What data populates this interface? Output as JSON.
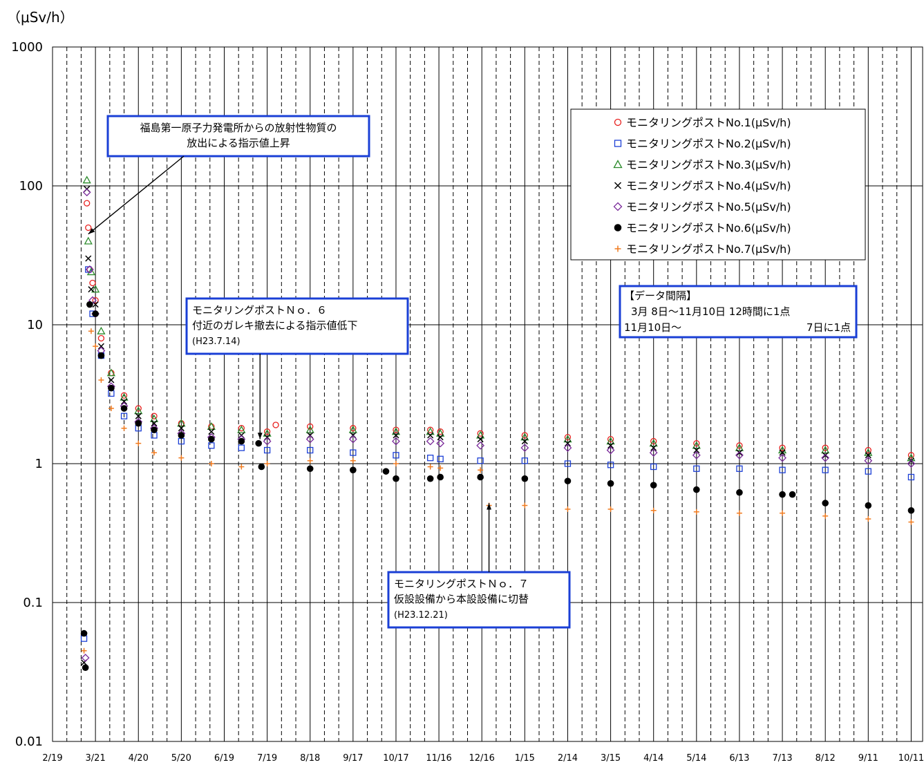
{
  "chart_data": {
    "type": "scatter",
    "y_unit": "（μSv/h）",
    "y_scale": "log",
    "ylim": [
      0.01,
      1000
    ],
    "y_ticks": [
      "1000",
      "100",
      "10",
      "1",
      "0.1",
      "0.01"
    ],
    "x_tick_labels": [
      "2/19",
      "3/21",
      "4/20",
      "5/20",
      "6/19",
      "7/19",
      "8/18",
      "9/17",
      "10/17",
      "11/16",
      "12/16",
      "1/15",
      "2/14",
      "3/15",
      "4/14",
      "5/14",
      "6/13",
      "7/13",
      "8/12",
      "9/11",
      "10/11"
    ],
    "x_range": [
      "2011-02-19",
      "2012-10-19"
    ],
    "grid": true,
    "legend_position": "top-right",
    "series": [
      {
        "name": "モニタリングポストNo.1(μSv/h)",
        "marker": "circle-open",
        "color": "#e8201e",
        "points": [
          [
            "2011-03-15",
            75
          ],
          [
            "2011-03-16",
            50
          ],
          [
            "2011-03-17",
            25
          ],
          [
            "2011-03-19",
            20
          ],
          [
            "2011-03-21",
            15
          ],
          [
            "2011-03-25",
            8
          ],
          [
            "2011-04-01",
            4.5
          ],
          [
            "2011-04-10",
            3.1
          ],
          [
            "2011-04-20",
            2.5
          ],
          [
            "2011-05-01",
            2.2
          ],
          [
            "2011-05-20",
            1.95
          ],
          [
            "2011-06-10",
            1.85
          ],
          [
            "2011-07-01",
            1.8
          ],
          [
            "2011-07-19",
            1.7
          ],
          [
            "2011-07-25",
            1.9
          ],
          [
            "2011-08-18",
            1.85
          ],
          [
            "2011-09-17",
            1.8
          ],
          [
            "2011-10-17",
            1.75
          ],
          [
            "2011-11-10",
            1.75
          ],
          [
            "2011-11-17",
            1.7
          ],
          [
            "2011-12-15",
            1.65
          ],
          [
            "2012-01-15",
            1.6
          ],
          [
            "2012-02-14",
            1.55
          ],
          [
            "2012-03-15",
            1.5
          ],
          [
            "2012-04-14",
            1.45
          ],
          [
            "2012-05-14",
            1.4
          ],
          [
            "2012-06-13",
            1.35
          ],
          [
            "2012-07-13",
            1.3
          ],
          [
            "2012-08-12",
            1.3
          ],
          [
            "2012-09-11",
            1.25
          ],
          [
            "2012-10-11",
            1.15
          ]
        ]
      },
      {
        "name": "モニタリングポストNo.2(μSv/h)",
        "marker": "square-open",
        "color": "#1b3fd6",
        "points": [
          [
            "2011-03-13",
            0.055
          ],
          [
            "2011-03-16",
            25
          ],
          [
            "2011-03-19",
            12
          ],
          [
            "2011-03-25",
            6
          ],
          [
            "2011-04-01",
            3.2
          ],
          [
            "2011-04-10",
            2.2
          ],
          [
            "2011-04-20",
            1.8
          ],
          [
            "2011-05-01",
            1.6
          ],
          [
            "2011-05-20",
            1.45
          ],
          [
            "2011-06-10",
            1.35
          ],
          [
            "2011-07-01",
            1.3
          ],
          [
            "2011-07-19",
            1.25
          ],
          [
            "2011-08-18",
            1.25
          ],
          [
            "2011-09-17",
            1.2
          ],
          [
            "2011-10-17",
            1.15
          ],
          [
            "2011-11-10",
            1.1
          ],
          [
            "2011-11-17",
            1.08
          ],
          [
            "2011-12-15",
            1.05
          ],
          [
            "2012-01-15",
            1.05
          ],
          [
            "2012-02-14",
            1.0
          ],
          [
            "2012-03-15",
            0.98
          ],
          [
            "2012-04-14",
            0.95
          ],
          [
            "2012-05-14",
            0.92
          ],
          [
            "2012-06-13",
            0.92
          ],
          [
            "2012-07-13",
            0.9
          ],
          [
            "2012-08-12",
            0.9
          ],
          [
            "2012-09-11",
            0.88
          ],
          [
            "2012-10-11",
            0.8
          ]
        ]
      },
      {
        "name": "モニタリングポストNo.3(μSv/h)",
        "marker": "triangle-open",
        "color": "#2a8a2a",
        "points": [
          [
            "2011-03-15",
            110
          ],
          [
            "2011-03-16",
            40
          ],
          [
            "2011-03-18",
            24
          ],
          [
            "2011-03-21",
            18
          ],
          [
            "2011-03-25",
            9
          ],
          [
            "2011-04-01",
            4.5
          ],
          [
            "2011-04-10",
            3.0
          ],
          [
            "2011-04-20",
            2.4
          ],
          [
            "2011-05-01",
            2.1
          ],
          [
            "2011-05-20",
            1.95
          ],
          [
            "2011-06-10",
            1.85
          ],
          [
            "2011-07-01",
            1.75
          ],
          [
            "2011-07-19",
            1.65
          ],
          [
            "2011-08-18",
            1.75
          ],
          [
            "2011-09-17",
            1.75
          ],
          [
            "2011-10-17",
            1.7
          ],
          [
            "2011-11-10",
            1.7
          ],
          [
            "2011-11-17",
            1.65
          ],
          [
            "2011-12-15",
            1.6
          ],
          [
            "2012-01-15",
            1.55
          ],
          [
            "2012-02-14",
            1.5
          ],
          [
            "2012-03-15",
            1.45
          ],
          [
            "2012-04-14",
            1.4
          ],
          [
            "2012-05-14",
            1.35
          ],
          [
            "2012-06-13",
            1.3
          ],
          [
            "2012-07-13",
            1.25
          ],
          [
            "2012-08-12",
            1.25
          ],
          [
            "2012-09-11",
            1.2
          ],
          [
            "2012-10-11",
            1.1
          ]
        ]
      },
      {
        "name": "モニタリングポストNo.4(μSv/h)",
        "marker": "x",
        "color": "#000000",
        "points": [
          [
            "2011-03-13",
            0.037
          ],
          [
            "2011-03-15",
            95
          ],
          [
            "2011-03-16",
            30
          ],
          [
            "2011-03-18",
            18
          ],
          [
            "2011-03-21",
            14
          ],
          [
            "2011-03-25",
            7
          ],
          [
            "2011-04-01",
            4
          ],
          [
            "2011-04-10",
            2.8
          ],
          [
            "2011-04-20",
            2.2
          ],
          [
            "2011-05-01",
            1.95
          ],
          [
            "2011-05-20",
            1.8
          ],
          [
            "2011-06-10",
            1.7
          ],
          [
            "2011-07-01",
            1.6
          ],
          [
            "2011-07-19",
            1.55
          ],
          [
            "2011-08-18",
            1.6
          ],
          [
            "2011-09-17",
            1.6
          ],
          [
            "2011-10-17",
            1.6
          ],
          [
            "2011-11-10",
            1.6
          ],
          [
            "2011-11-17",
            1.55
          ],
          [
            "2011-12-15",
            1.5
          ],
          [
            "2012-01-15",
            1.45
          ],
          [
            "2012-02-14",
            1.4
          ],
          [
            "2012-03-15",
            1.35
          ],
          [
            "2012-04-14",
            1.3
          ],
          [
            "2012-05-14",
            1.25
          ],
          [
            "2012-06-13",
            1.2
          ],
          [
            "2012-07-13",
            1.2
          ],
          [
            "2012-08-12",
            1.15
          ],
          [
            "2012-09-11",
            1.15
          ],
          [
            "2012-10-11",
            1.05
          ]
        ]
      },
      {
        "name": "モニタリングポストNo.5(μSv/h)",
        "marker": "diamond-open",
        "color": "#7a2a9a",
        "points": [
          [
            "2011-03-14",
            0.04
          ],
          [
            "2011-03-15",
            90
          ],
          [
            "2011-03-17",
            25
          ],
          [
            "2011-03-19",
            15
          ],
          [
            "2011-03-21",
            12
          ],
          [
            "2011-03-25",
            6.5
          ],
          [
            "2011-04-01",
            3.6
          ],
          [
            "2011-04-10",
            2.6
          ],
          [
            "2011-04-20",
            2.0
          ],
          [
            "2011-05-01",
            1.8
          ],
          [
            "2011-05-20",
            1.65
          ],
          [
            "2011-06-10",
            1.55
          ],
          [
            "2011-07-01",
            1.5
          ],
          [
            "2011-07-19",
            1.45
          ],
          [
            "2011-08-18",
            1.5
          ],
          [
            "2011-09-17",
            1.5
          ],
          [
            "2011-10-17",
            1.45
          ],
          [
            "2011-11-10",
            1.45
          ],
          [
            "2011-11-17",
            1.4
          ],
          [
            "2011-12-15",
            1.35
          ],
          [
            "2012-01-15",
            1.3
          ],
          [
            "2012-02-14",
            1.3
          ],
          [
            "2012-03-15",
            1.25
          ],
          [
            "2012-04-14",
            1.2
          ],
          [
            "2012-05-14",
            1.15
          ],
          [
            "2012-06-13",
            1.15
          ],
          [
            "2012-07-13",
            1.1
          ],
          [
            "2012-08-12",
            1.1
          ],
          [
            "2012-09-11",
            1.05
          ],
          [
            "2012-10-11",
            1.0
          ]
        ]
      },
      {
        "name": "モニタリングポストNo.6(μSv/h)",
        "marker": "circle-filled",
        "color": "#000000",
        "points": [
          [
            "2011-03-13",
            0.06
          ],
          [
            "2011-03-14",
            0.034
          ],
          [
            "2011-03-17",
            14
          ],
          [
            "2011-03-21",
            12
          ],
          [
            "2011-03-25",
            6
          ],
          [
            "2011-04-01",
            3.5
          ],
          [
            "2011-04-10",
            2.5
          ],
          [
            "2011-04-20",
            1.95
          ],
          [
            "2011-05-01",
            1.75
          ],
          [
            "2011-05-20",
            1.6
          ],
          [
            "2011-06-10",
            1.5
          ],
          [
            "2011-07-01",
            1.45
          ],
          [
            "2011-07-13",
            1.4
          ],
          [
            "2011-07-15",
            0.95
          ],
          [
            "2011-08-18",
            0.92
          ],
          [
            "2011-09-17",
            0.9
          ],
          [
            "2011-10-10",
            0.88
          ],
          [
            "2011-10-17",
            0.78
          ],
          [
            "2011-11-10",
            0.78
          ],
          [
            "2011-11-17",
            0.8
          ],
          [
            "2011-12-15",
            0.8
          ],
          [
            "2012-01-15",
            0.78
          ],
          [
            "2012-02-14",
            0.75
          ],
          [
            "2012-03-15",
            0.72
          ],
          [
            "2012-04-14",
            0.7
          ],
          [
            "2012-05-14",
            0.65
          ],
          [
            "2012-06-13",
            0.62
          ],
          [
            "2012-07-13",
            0.6
          ],
          [
            "2012-07-20",
            0.6
          ],
          [
            "2012-08-12",
            0.52
          ],
          [
            "2012-09-11",
            0.5
          ],
          [
            "2012-10-11",
            0.46
          ]
        ]
      },
      {
        "name": "モニタリングポストNo.7(μSv/h)",
        "marker": "plus",
        "color": "#f07a1e",
        "points": [
          [
            "2011-03-13",
            0.045
          ],
          [
            "2011-03-18",
            9
          ],
          [
            "2011-03-21",
            7
          ],
          [
            "2011-03-25",
            4
          ],
          [
            "2011-04-01",
            2.5
          ],
          [
            "2011-04-10",
            1.8
          ],
          [
            "2011-04-20",
            1.4
          ],
          [
            "2011-05-01",
            1.2
          ],
          [
            "2011-05-20",
            1.1
          ],
          [
            "2011-06-10",
            1.0
          ],
          [
            "2011-07-01",
            0.95
          ],
          [
            "2011-07-19",
            1.0
          ],
          [
            "2011-08-18",
            1.05
          ],
          [
            "2011-09-17",
            1.05
          ],
          [
            "2011-10-17",
            1.0
          ],
          [
            "2011-11-10",
            0.95
          ],
          [
            "2011-11-17",
            0.93
          ],
          [
            "2011-12-15",
            0.9
          ],
          [
            "2011-12-21",
            0.5
          ],
          [
            "2012-01-15",
            0.5
          ],
          [
            "2012-02-14",
            0.47
          ],
          [
            "2012-03-15",
            0.47
          ],
          [
            "2012-04-14",
            0.46
          ],
          [
            "2012-05-14",
            0.45
          ],
          [
            "2012-06-13",
            0.44
          ],
          [
            "2012-07-13",
            0.44
          ],
          [
            "2012-08-12",
            0.42
          ],
          [
            "2012-09-11",
            0.4
          ],
          [
            "2012-10-11",
            0.38
          ]
        ]
      }
    ],
    "annotations": [
      {
        "lines": [
          "福島第一原子力発電所からの放射性物質の",
          "放出による指示値上昇"
        ],
        "arrow_to": [
          "2011-03-16",
          45
        ]
      },
      {
        "lines": [
          "モニタリングポストＮｏ．６",
          "付近のガレキ撤去による指示値低下",
          "(H23.7.14)"
        ],
        "arrow_to": [
          "2011-07-14",
          1.5
        ]
      },
      {
        "lines": [
          "モニタリングポストＮｏ．７",
          "仮設設備から本設設備に切替",
          "(H23.12.21)"
        ],
        "arrow_to": [
          "2011-12-21",
          0.52
        ]
      }
    ],
    "data_interval_note": {
      "title": "【データ間隔】",
      "lines": [
        "3月 8日～11月10日 12時間に1点",
        "11月10日～ 7日に1点"
      ]
    }
  }
}
